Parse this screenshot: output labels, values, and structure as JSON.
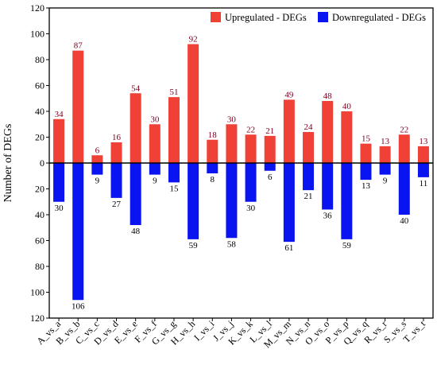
{
  "chart_data": {
    "type": "bar",
    "ylabel": "Number of DEGs",
    "xlabel": "",
    "ylim": [
      -120,
      120
    ],
    "yticks": [
      120,
      100,
      80,
      60,
      40,
      20,
      0,
      20,
      40,
      60,
      80,
      100,
      120
    ],
    "categories": [
      "A_vs_a",
      "B_vs_b",
      "C_vs_c",
      "D_vs_d",
      "E_vs_e",
      "F_vs_f",
      "G_vs_g",
      "H_vs_h",
      "I_vs_i",
      "J_vs_j",
      "K_vs_k",
      "L_vs_l",
      "M_vs_m",
      "N_vs_n",
      "O_vs_o",
      "P_vs_p",
      "Q_vs_q",
      "R_vs_r",
      "S_vs_s",
      "T_vs_t"
    ],
    "series": [
      {
        "name": "Upregulated - DEGs",
        "color": "#ef4136",
        "values": [
          34,
          87,
          6,
          16,
          54,
          30,
          51,
          92,
          18,
          30,
          22,
          21,
          49,
          24,
          48,
          40,
          15,
          13,
          22,
          13
        ]
      },
      {
        "name": "Downregulated - DEGs",
        "color": "#0a14f0",
        "values": [
          30,
          106,
          9,
          27,
          48,
          9,
          15,
          59,
          8,
          58,
          30,
          6,
          61,
          21,
          36,
          59,
          13,
          9,
          40,
          11
        ]
      }
    ],
    "legend_position": "top-right",
    "grid": false
  }
}
